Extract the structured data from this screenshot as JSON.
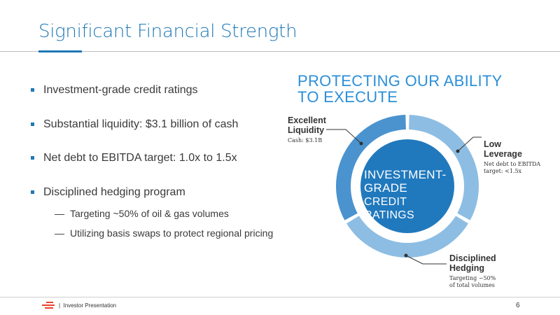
{
  "slide": {
    "title": "Significant Financial Strength"
  },
  "bullets": [
    {
      "text": "Investment-grade credit ratings"
    },
    {
      "text": "Substantial liquidity: $3.1 billion of cash"
    },
    {
      "text": "Net debt to EBITDA target: 1.0x to 1.5x"
    },
    {
      "text": "Disciplined hedging program",
      "subs": [
        "Targeting ~50% of oil & gas volumes",
        "Utilizing basis swaps to protect regional pricing"
      ]
    }
  ],
  "sub_marker": "—",
  "diagram": {
    "title_line1": "PROTECTING OUR ABILITY",
    "title_line2": "TO EXECUTE",
    "center_line1": "INVESTMENT-",
    "center_line2": "GRADE",
    "center_line3": "CREDIT RATINGS",
    "liquidity": {
      "head1": "Excellent",
      "head2": "Liquidity",
      "sub": "Cash: $3.1B"
    },
    "leverage": {
      "head1": "Low",
      "head2": "Leverage",
      "sub1": "Net debt to EBITDA",
      "sub2": "target: <1.5x"
    },
    "hedging": {
      "head1": "Disciplined",
      "head2": "Hedging",
      "sub1": "Targeting ~50%",
      "sub2": "of total volumes"
    },
    "colors": {
      "ring_dark": "#4a93cf",
      "ring_light": "#8dbde3",
      "center": "#2179bd",
      "title": "#2c8fd8"
    }
  },
  "footer": {
    "separator": "|",
    "text": "Investor Presentation",
    "page_number": "6"
  }
}
